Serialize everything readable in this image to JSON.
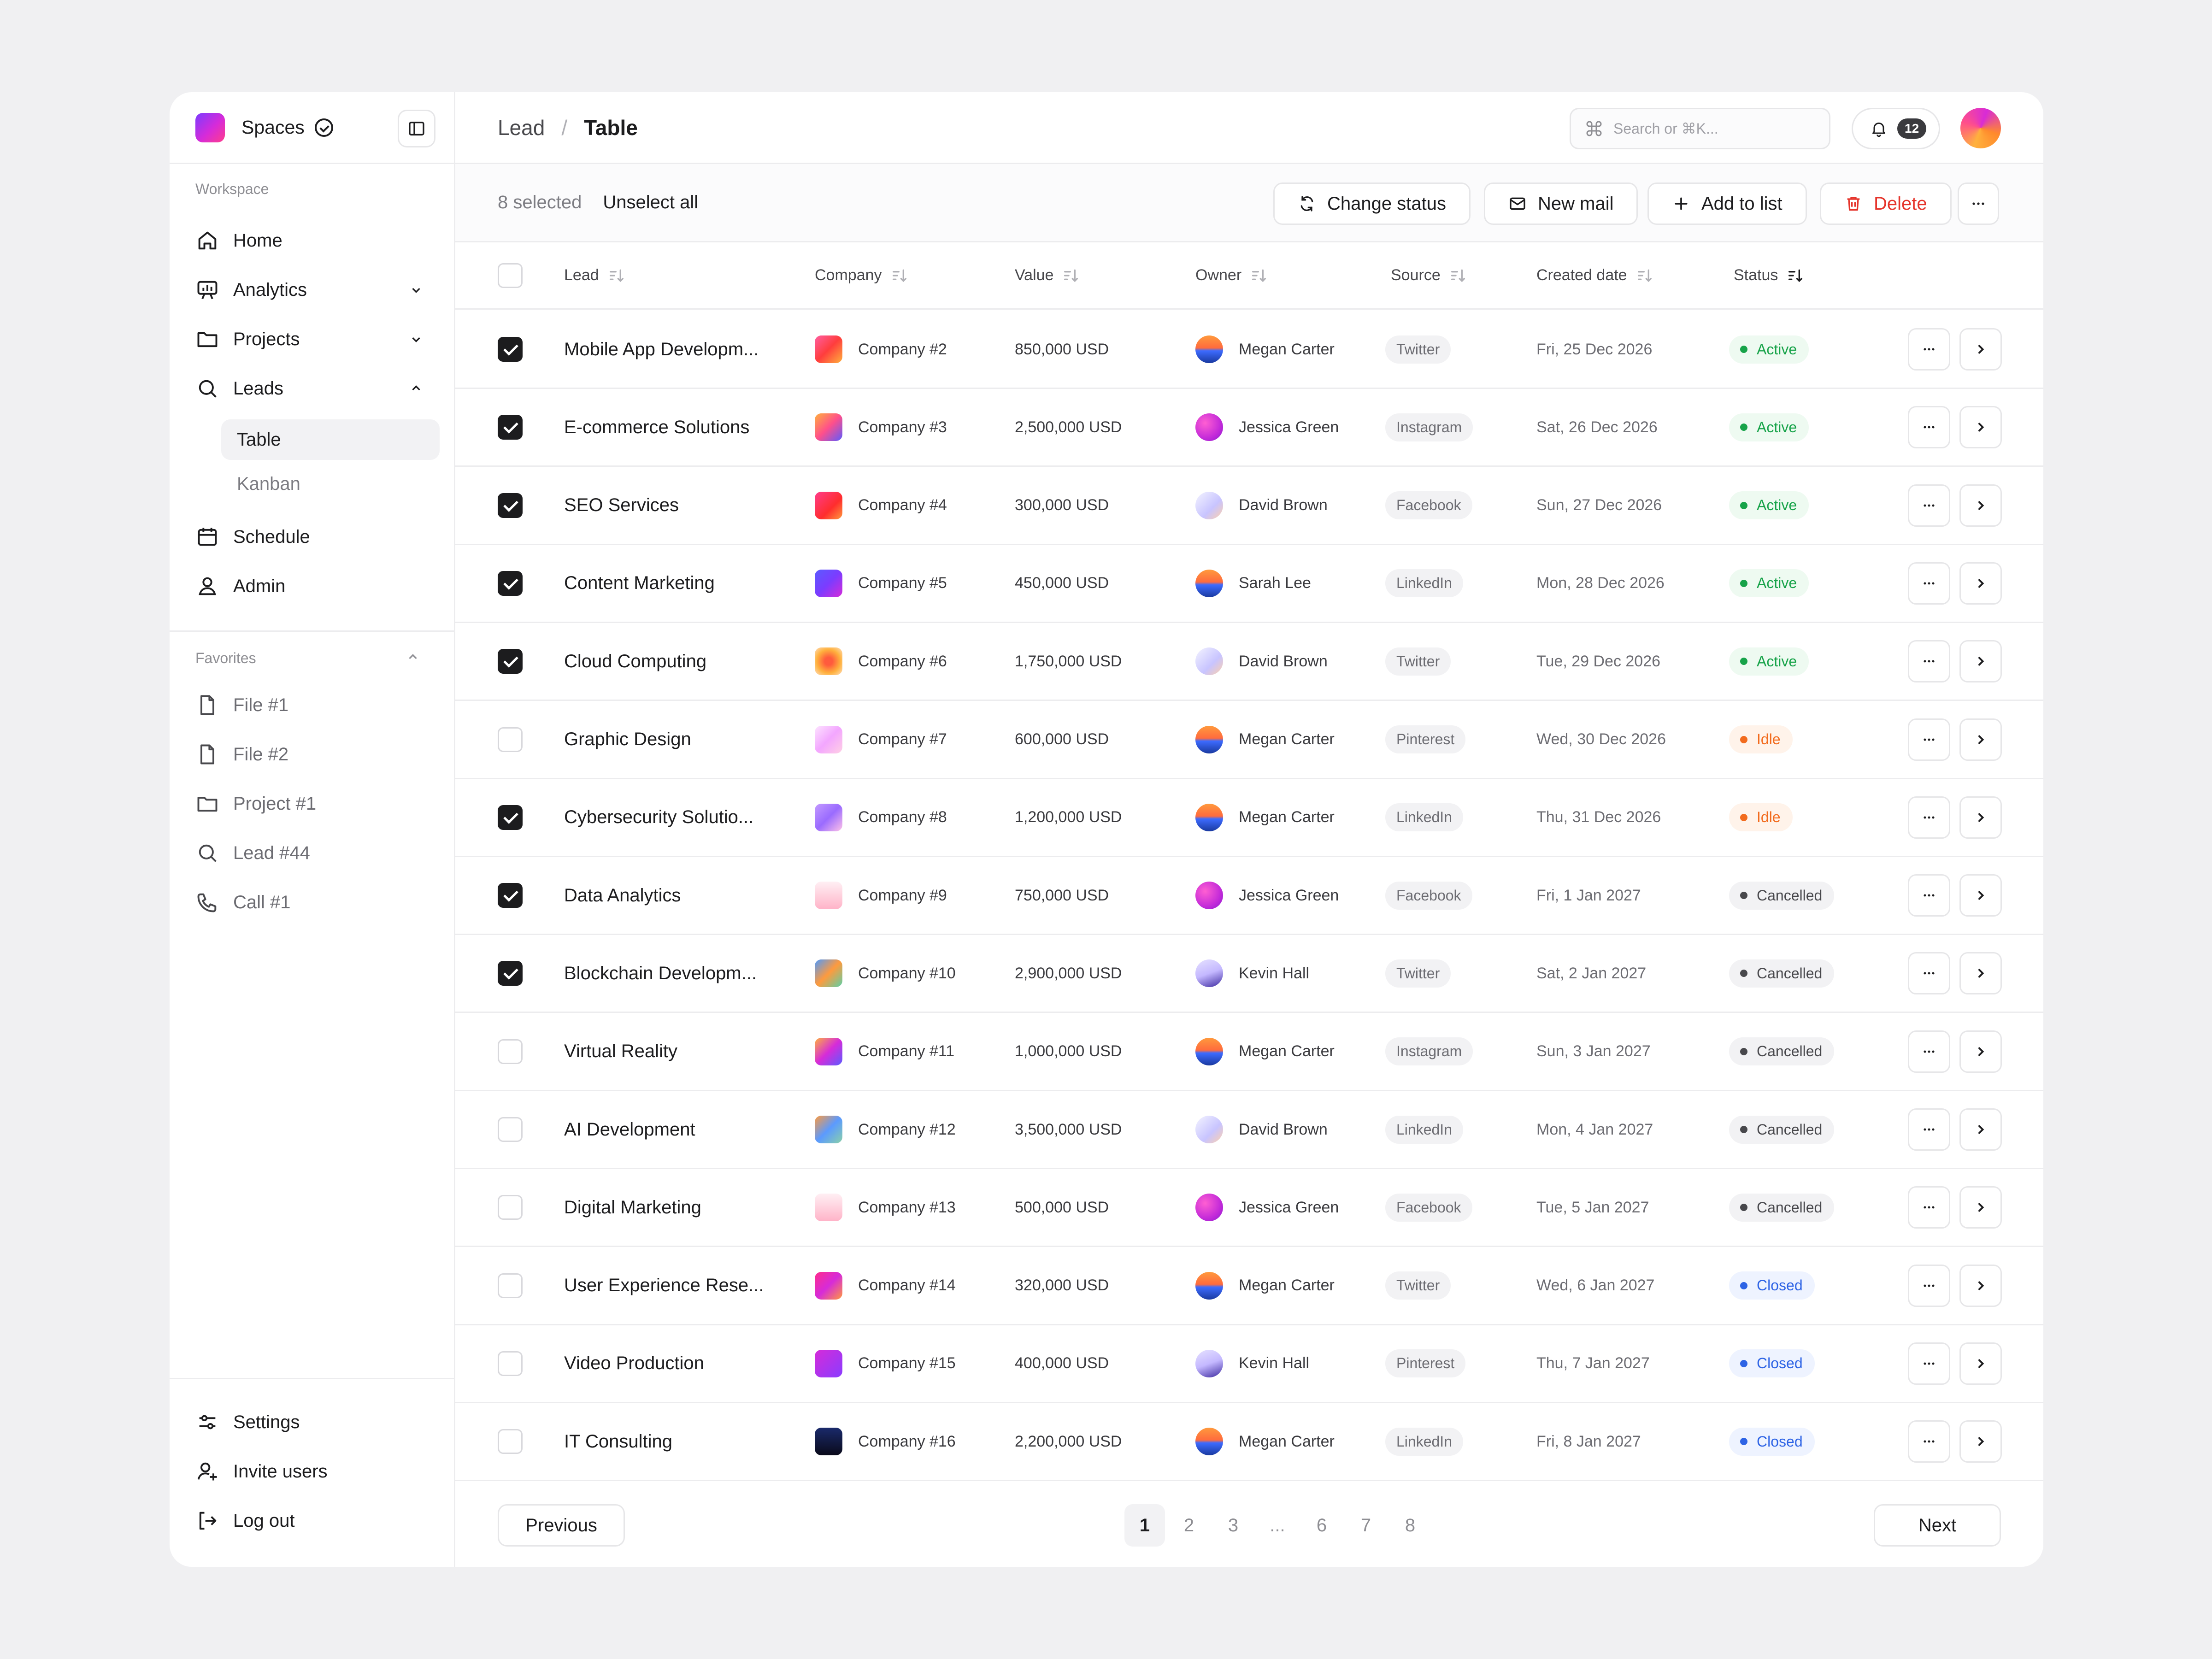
{
  "sidebar": {
    "brand": "Spaces",
    "workspace_label": "Workspace",
    "nav": [
      {
        "label": "Home",
        "icon": "home-icon"
      },
      {
        "label": "Analytics",
        "icon": "analytics-icon"
      },
      {
        "label": "Projects",
        "icon": "folder-icon"
      },
      {
        "label": "Leads",
        "icon": "search-icon"
      },
      {
        "label": "Schedule",
        "icon": "calendar-icon"
      },
      {
        "label": "Admin",
        "icon": "user-icon"
      }
    ],
    "leads_sub": [
      "Table",
      "Kanban"
    ],
    "favorites_label": "Favorites",
    "favorites": [
      {
        "label": "File #1",
        "icon": "file-icon"
      },
      {
        "label": "File #2",
        "icon": "file-icon"
      },
      {
        "label": "Project #1",
        "icon": "folder-icon"
      },
      {
        "label": "Lead #44",
        "icon": "search-icon"
      },
      {
        "label": "Call #1",
        "icon": "phone-icon"
      }
    ],
    "bottom": [
      {
        "label": "Settings",
        "icon": "sliders-icon"
      },
      {
        "label": "Invite users",
        "icon": "user-plus-icon"
      },
      {
        "label": "Log out",
        "icon": "logout-icon"
      }
    ]
  },
  "header": {
    "breadcrumb": [
      "Lead",
      "Table"
    ],
    "separator": "/",
    "search_placeholder": "Search or ⌘K...",
    "notification_count": "12"
  },
  "actions": {
    "selected_text": "8 selected",
    "unselect_all": "Unselect all",
    "change_status": "Change status",
    "new_mail": "New mail",
    "add_to_list": "Add to list",
    "delete": "Delete",
    "more": "···"
  },
  "table": {
    "columns": [
      "Lead",
      "Company",
      "Value",
      "Owner",
      "Source",
      "Created date",
      "Status"
    ],
    "rows": [
      {
        "checked": true,
        "lead": "Mobile App Developm...",
        "company": "Company #2",
        "value": "850,000 USD",
        "owner": "Megan Carter",
        "source": "Twitter",
        "date": "Fri, 25 Dec 2026",
        "status": "Active"
      },
      {
        "checked": true,
        "lead": "E-commerce Solutions",
        "company": "Company #3",
        "value": "2,500,000 USD",
        "owner": "Jessica Green",
        "source": "Instagram",
        "date": "Sat, 26 Dec 2026",
        "status": "Active"
      },
      {
        "checked": true,
        "lead": "SEO Services",
        "company": "Company #4",
        "value": "300,000 USD",
        "owner": "David Brown",
        "source": "Facebook",
        "date": "Sun, 27 Dec 2026",
        "status": "Active"
      },
      {
        "checked": true,
        "lead": "Content Marketing",
        "company": "Company #5",
        "value": "450,000 USD",
        "owner": "Sarah Lee",
        "source": "LinkedIn",
        "date": "Mon, 28 Dec 2026",
        "status": "Active"
      },
      {
        "checked": true,
        "lead": "Cloud Computing",
        "company": "Company #6",
        "value": "1,750,000 USD",
        "owner": "David Brown",
        "source": "Twitter",
        "date": "Tue, 29 Dec 2026",
        "status": "Active"
      },
      {
        "checked": false,
        "lead": "Graphic Design",
        "company": "Company #7",
        "value": "600,000 USD",
        "owner": "Megan Carter",
        "source": "Pinterest",
        "date": "Wed, 30 Dec 2026",
        "status": "Idle"
      },
      {
        "checked": true,
        "lead": "Cybersecurity Solutio...",
        "company": "Company #8",
        "value": "1,200,000 USD",
        "owner": "Megan Carter",
        "source": "LinkedIn",
        "date": "Thu, 31 Dec 2026",
        "status": "Idle"
      },
      {
        "checked": true,
        "lead": "Data Analytics",
        "company": "Company #9",
        "value": "750,000 USD",
        "owner": "Jessica Green",
        "source": "Facebook",
        "date": "Fri, 1 Jan 2027",
        "status": "Cancelled"
      },
      {
        "checked": true,
        "lead": "Blockchain Developm...",
        "company": "Company #10",
        "value": "2,900,000 USD",
        "owner": "Kevin Hall",
        "source": "Twitter",
        "date": "Sat, 2 Jan 2027",
        "status": "Cancelled"
      },
      {
        "checked": false,
        "lead": "Virtual Reality",
        "company": "Company #11",
        "value": "1,000,000 USD",
        "owner": "Megan Carter",
        "source": "Instagram",
        "date": "Sun, 3 Jan 2027",
        "status": "Cancelled"
      },
      {
        "checked": false,
        "lead": "AI Development",
        "company": "Company #12",
        "value": "3,500,000 USD",
        "owner": "David Brown",
        "source": "LinkedIn",
        "date": "Mon, 4 Jan 2027",
        "status": "Cancelled"
      },
      {
        "checked": false,
        "lead": "Digital Marketing",
        "company": "Company #13",
        "value": "500,000 USD",
        "owner": "Jessica Green",
        "source": "Facebook",
        "date": "Tue, 5 Jan 2027",
        "status": "Cancelled"
      },
      {
        "checked": false,
        "lead": "User Experience Rese...",
        "company": "Company #14",
        "value": "320,000 USD",
        "owner": "Megan Carter",
        "source": "Twitter",
        "date": "Wed, 6 Jan 2027",
        "status": "Closed"
      },
      {
        "checked": false,
        "lead": "Video Production",
        "company": "Company #15",
        "value": "400,000 USD",
        "owner": "Kevin Hall",
        "source": "Pinterest",
        "date": "Thu, 7 Jan 2027",
        "status": "Closed"
      },
      {
        "checked": false,
        "lead": "IT Consulting",
        "company": "Company #16",
        "value": "2,200,000 USD",
        "owner": "Megan Carter",
        "source": "LinkedIn",
        "date": "Fri, 8 Jan 2027",
        "status": "Closed"
      }
    ]
  },
  "pagination": {
    "previous": "Previous",
    "next": "Next",
    "pages": [
      "1",
      "2",
      "3",
      "...",
      "6",
      "7",
      "8"
    ],
    "current": "1"
  },
  "colors": {
    "active": "#17a349",
    "idle": "#f26b1d",
    "cancelled": "#48484c",
    "closed": "#2d63e5",
    "danger": "#e5342b"
  }
}
